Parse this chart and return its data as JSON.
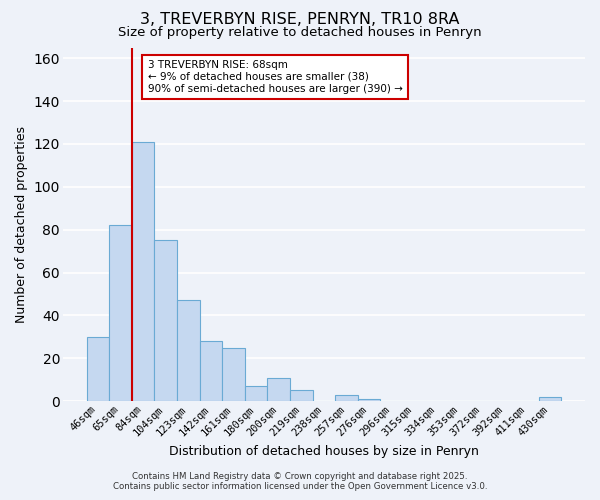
{
  "title": "3, TREVERBYN RISE, PENRYN, TR10 8RA",
  "subtitle": "Size of property relative to detached houses in Penryn",
  "xlabel": "Distribution of detached houses by size in Penryn",
  "ylabel": "Number of detached properties",
  "bar_labels": [
    "46sqm",
    "65sqm",
    "84sqm",
    "104sqm",
    "123sqm",
    "142sqm",
    "161sqm",
    "180sqm",
    "200sqm",
    "219sqm",
    "238sqm",
    "257sqm",
    "276sqm",
    "296sqm",
    "315sqm",
    "334sqm",
    "353sqm",
    "372sqm",
    "392sqm",
    "411sqm",
    "430sqm"
  ],
  "bar_values": [
    30,
    82,
    121,
    75,
    47,
    28,
    25,
    7,
    11,
    5,
    0,
    3,
    1,
    0,
    0,
    0,
    0,
    0,
    0,
    0,
    2
  ],
  "bar_color": "#c5d8f0",
  "bar_edge_color": "#6aaad4",
  "vline_color": "#cc0000",
  "vline_x_index": 2,
  "ylim": [
    0,
    165
  ],
  "yticks": [
    0,
    20,
    40,
    60,
    80,
    100,
    120,
    140,
    160
  ],
  "annotation_lines": [
    "3 TREVERBYN RISE: 68sqm",
    "← 9% of detached houses are smaller (38)",
    "90% of semi-detached houses are larger (390) →"
  ],
  "footer_line1": "Contains HM Land Registry data © Crown copyright and database right 2025.",
  "footer_line2": "Contains public sector information licensed under the Open Government Licence v3.0.",
  "background_color": "#eef2f9",
  "grid_color": "#ffffff",
  "title_fontsize": 11.5,
  "subtitle_fontsize": 9.5,
  "axis_label_fontsize": 9,
  "tick_fontsize": 7.5
}
